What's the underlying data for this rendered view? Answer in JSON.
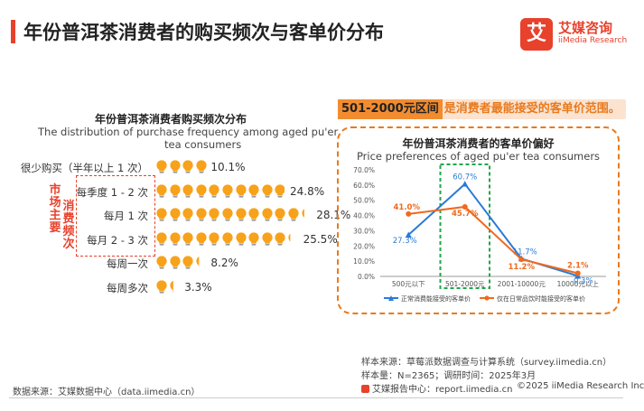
{
  "header": {
    "title": "年份普洱茶消费者的购买频次与客单价分布",
    "logo_mark": "艾",
    "logo_cn": "艾媒咨询",
    "logo_en": "iiMedia Research"
  },
  "left_chart": {
    "title": "年份普洱茶消费者购买频次分布",
    "subtitle_line1": "The distribution of purchase frequency among aged pu'er",
    "subtitle_line2": "tea consumers",
    "market_label": "市场主要消费频次",
    "bulb_color": "#f7a21b",
    "icon": "lightbulb-icon",
    "rows": [
      {
        "label": "很少购买（半年以上 1 次）",
        "value": 10.1,
        "value_label": "10.1%"
      },
      {
        "label": "每季度 1 - 2 次",
        "value": 24.8,
        "value_label": "24.8%"
      },
      {
        "label": "每月 1 次",
        "value": 28.1,
        "value_label": "28.1%"
      },
      {
        "label": "每月 2 - 3 次",
        "value": 25.5,
        "value_label": "25.5%"
      },
      {
        "label": "每周一次",
        "value": 8.2,
        "value_label": "8.2%"
      },
      {
        "label": "每周多次",
        "value": 3.3,
        "value_label": "3.3%"
      }
    ]
  },
  "banner": {
    "range_text": "501-2000元区间",
    "rest_text": "是消费者最能接受的客单价范围。"
  },
  "chart_data": {
    "type": "line",
    "title": "年份普洱茶消费者的客单价偏好",
    "subtitle": "Price preferences of aged pu'er tea consumers",
    "categories": [
      "500元以下",
      "501-2000元",
      "2001-10000元",
      "10000元以上"
    ],
    "y_ticks": [
      "0.0%",
      "10.0%",
      "20.0%",
      "30.0%",
      "40.0%",
      "50.0%",
      "60.0%",
      "70.0%"
    ],
    "ylim": [
      0,
      70
    ],
    "highlight_category": "501-2000元",
    "series": [
      {
        "name": "正常消费能接受的客单价",
        "color": "#2b7bd6",
        "values": [
          27.3,
          60.7,
          11.7,
          0.3
        ],
        "labels": [
          "27.3%",
          "60.7%",
          "11.7%",
          "0.3%"
        ]
      },
      {
        "name": "仅在日常品饮时能接受的客单价",
        "color": "#ee6a1f",
        "values": [
          41.0,
          45.7,
          11.2,
          2.1
        ],
        "labels": [
          "41.0%",
          "45.7%",
          "11.2%",
          "2.1%"
        ]
      }
    ]
  },
  "footer": {
    "source_left": "数据来源：艾媒数据中心（data.iimedia.cn）",
    "sample_source": "样本来源：草莓派数据调查与计算系统（survey.iimedia.cn）",
    "sample_size": "样本量：N=2365；调研时间：2025年3月",
    "report_center": "艾媒报告中心：report.iimedia.cn",
    "copyright": "©2025  iiMedia Research  Inc"
  }
}
